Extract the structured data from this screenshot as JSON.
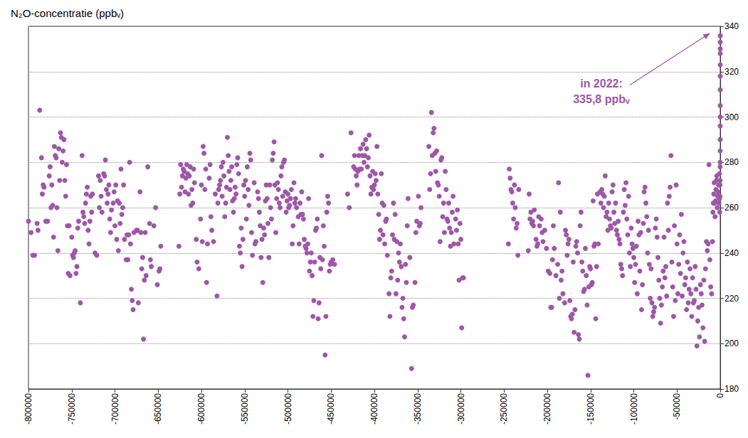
{
  "chart_data": {
    "type": "scatter",
    "title": "N₂O-concentratie (ppbᵥ)",
    "color": "#9e57a8",
    "marker": "circle",
    "grid": true,
    "xlim": [
      -800000,
      0
    ],
    "xticks": [
      -800000,
      -750000,
      -700000,
      -650000,
      -600000,
      -550000,
      -500000,
      -450000,
      -400000,
      -350000,
      -300000,
      -250000,
      -200000,
      -150000,
      -100000,
      -50000,
      0
    ],
    "ylim": [
      180,
      340
    ],
    "yticks": [
      180,
      200,
      220,
      240,
      260,
      280,
      300,
      320,
      340
    ],
    "annotations": [
      {
        "text": "in 2022:\n335,8 ppbᵥ",
        "x": 0,
        "y": 335.8
      }
    ],
    "x": [
      -800000,
      -797000,
      -795000,
      -793000,
      -790000,
      -789000,
      -787000,
      -785000,
      -784000,
      -783000,
      -782000,
      -780000,
      -778000,
      -776000,
      -775000,
      -774000,
      -773000,
      -772000,
      -771000,
      -770000,
      -769000,
      -768000,
      -767000,
      -766000,
      -765000,
      -764000,
      -763000,
      -762000,
      -761000,
      -760000,
      -759000,
      -758000,
      -757000,
      -756000,
      -755000,
      -754000,
      -753000,
      -752000,
      -750000,
      -749000,
      -748000,
      -747000,
      -746000,
      -745000,
      -744000,
      -743000,
      -742000,
      -740000,
      -738000,
      -737000,
      -736000,
      -735000,
      -734000,
      -733000,
      -732000,
      -731000,
      -730000,
      -729000,
      -728000,
      -727000,
      -726000,
      -723000,
      -721000,
      -719000,
      -718000,
      -717000,
      -716000,
      -715000,
      -713000,
      -712000,
      -711000,
      -710000,
      -709000,
      -708000,
      -707000,
      -706000,
      -705000,
      -704000,
      -702000,
      -701000,
      -700000,
      -699000,
      -698000,
      -697000,
      -696000,
      -695000,
      -694000,
      -693000,
      -692000,
      -691000,
      -690000,
      -689000,
      -687000,
      -686000,
      -685000,
      -684000,
      -683000,
      -682000,
      -681000,
      -680000,
      -679000,
      -678000,
      -675000,
      -674000,
      -673000,
      -671000,
      -670000,
      -669000,
      -668000,
      -667000,
      -666000,
      -665000,
      -664000,
      -662000,
      -660000,
      -659000,
      -658000,
      -655000,
      -653000,
      -651000,
      -649000,
      -648000,
      -647000,
      -626000,
      -625000,
      -624000,
      -623000,
      -622000,
      -621000,
      -620000,
      -619000,
      -618000,
      -617000,
      -616000,
      -615000,
      -614000,
      -613000,
      -612000,
      -611000,
      -610000,
      -609000,
      -608000,
      -606000,
      -605000,
      -603000,
      -601000,
      -600000,
      -599000,
      -598000,
      -597000,
      -596000,
      -595000,
      -594000,
      -593000,
      -591000,
      -590000,
      -589000,
      -588000,
      -586000,
      -584000,
      -582000,
      -581000,
      -580000,
      -579000,
      -578000,
      -577000,
      -576000,
      -575000,
      -574000,
      -573000,
      -572000,
      -571000,
      -570000,
      -569000,
      -568000,
      -567000,
      -566000,
      -565000,
      -564000,
      -563000,
      -562000,
      -561000,
      -560000,
      -559000,
      -558000,
      -557000,
      -556000,
      -555000,
      -554000,
      -553000,
      -552000,
      -551000,
      -550000,
      -549000,
      -548000,
      -547000,
      -546000,
      -545000,
      -544000,
      -543000,
      -542000,
      -541000,
      -539000,
      -538000,
      -537000,
      -535000,
      -534000,
      -533000,
      -532000,
      -531000,
      -530000,
      -529000,
      -528000,
      -527000,
      -526000,
      -525000,
      -524000,
      -523000,
      -522000,
      -521000,
      -520000,
      -519000,
      -518000,
      -517000,
      -516000,
      -515000,
      -514000,
      -513000,
      -512000,
      -511000,
      -510000,
      -509000,
      -508000,
      -507000,
      -506000,
      -505000,
      -504000,
      -503000,
      -502000,
      -501000,
      -500000,
      -499000,
      -498000,
      -497000,
      -496000,
      -495000,
      -494000,
      -493000,
      -492000,
      -491000,
      -490000,
      -488000,
      -487000,
      -486000,
      -485000,
      -484000,
      -483000,
      -482000,
      -481000,
      -480000,
      -479000,
      -478000,
      -477000,
      -476000,
      -475000,
      -474000,
      -473000,
      -472000,
      -471000,
      -470000,
      -469000,
      -468000,
      -467000,
      -466000,
      -465000,
      -464000,
      -463000,
      -462000,
      -461000,
      -460000,
      -459000,
      -458000,
      -457000,
      -456000,
      -455000,
      -454000,
      -453000,
      -452000,
      -451000,
      -450000,
      -448000,
      -446000,
      -431000,
      -429000,
      -427000,
      -424000,
      -423000,
      -422000,
      -421000,
      -420000,
      -419000,
      -418000,
      -417000,
      -416000,
      -415000,
      -414000,
      -413000,
      -412000,
      -411000,
      -410000,
      -409000,
      -408000,
      -407000,
      -406000,
      -405000,
      -404000,
      -403000,
      -402000,
      -401000,
      -400000,
      -399000,
      -398000,
      -397000,
      -396000,
      -395000,
      -394000,
      -393000,
      -392000,
      -391000,
      -390000,
      -389000,
      -388000,
      -387000,
      -386000,
      -385000,
      -383000,
      -382000,
      -381000,
      -380000,
      -379000,
      -378000,
      -377000,
      -376000,
      -375000,
      -374000,
      -373000,
      -372000,
      -371000,
      -370000,
      -369000,
      -368000,
      -367000,
      -366000,
      -365000,
      -364000,
      -363000,
      -362000,
      -361000,
      -359000,
      -357000,
      -356000,
      -355000,
      -353000,
      -352000,
      -351000,
      -349000,
      -348000,
      -347000,
      -346000,
      -337000,
      -336000,
      -335000,
      -334000,
      -333000,
      -332000,
      -331000,
      -330000,
      -329000,
      -328000,
      -327000,
      -326000,
      -325000,
      -324000,
      -323000,
      -322000,
      -321000,
      -320000,
      -319000,
      -318000,
      -317000,
      -316000,
      -315000,
      -314000,
      -313000,
      -312000,
      -311000,
      -310000,
      -309000,
      -308000,
      -306000,
      -305000,
      -304000,
      -303000,
      -302000,
      -301000,
      -300000,
      -299000,
      -298000,
      -297000,
      -245000,
      -244000,
      -243000,
      -242000,
      -241000,
      -240000,
      -239000,
      -238000,
      -237000,
      -236000,
      -235000,
      -234000,
      -233000,
      -222000,
      -221000,
      -220000,
      -219000,
      -218000,
      -217000,
      -216000,
      -215000,
      -213000,
      -212000,
      -211000,
      -210000,
      -209000,
      -207000,
      -206000,
      -205000,
      -203000,
      -201000,
      -199000,
      -197000,
      -196000,
      -195000,
      -194000,
      -193000,
      -192000,
      -190000,
      -188000,
      -187000,
      -186000,
      -185000,
      -184000,
      -183000,
      -182000,
      -180000,
      -179000,
      -178000,
      -177000,
      -176000,
      -175000,
      -174000,
      -173000,
      -172000,
      -171000,
      -170000,
      -169000,
      -168000,
      -167000,
      -166000,
      -165000,
      -164000,
      -163000,
      -162000,
      -161000,
      -160000,
      -159000,
      -158000,
      -157000,
      -156000,
      -155000,
      -154000,
      -153000,
      -152000,
      -151000,
      -150000,
      -149000,
      -148000,
      -147000,
      -146000,
      -145000,
      -144000,
      -143000,
      -142000,
      -141000,
      -139000,
      -138000,
      -137000,
      -136000,
      -135000,
      -134000,
      -133000,
      -132000,
      -131000,
      -130000,
      -129000,
      -128000,
      -127000,
      -126000,
      -125000,
      -124000,
      -123000,
      -122000,
      -121000,
      -120000,
      -119000,
      -118000,
      -117000,
      -116000,
      -115000,
      -114000,
      -113000,
      -112000,
      -111000,
      -110000,
      -109000,
      -108000,
      -107000,
      -106000,
      -105000,
      -104000,
      -103000,
      -102000,
      -101000,
      -100000,
      -99000,
      -98000,
      -97000,
      -96000,
      -95000,
      -94000,
      -93000,
      -92000,
      -91000,
      -90000,
      -89000,
      -88000,
      -87000,
      -86000,
      -85000,
      -84000,
      -83000,
      -82000,
      -81000,
      -80000,
      -79000,
      -78000,
      -77000,
      -76000,
      -75000,
      -74000,
      -73000,
      -72000,
      -71000,
      -70000,
      -69000,
      -68000,
      -67000,
      -66000,
      -65000,
      -64000,
      -63000,
      -62000,
      -61000,
      -60000,
      -59000,
      -58000,
      -57000,
      -56000,
      -55000,
      -54000,
      -53000,
      -52000,
      -51000,
      -50000,
      -49000,
      -48000,
      -47000,
      -46000,
      -45000,
      -44000,
      -43000,
      -42000,
      -41000,
      -40000,
      -39000,
      -38000,
      -37000,
      -36000,
      -35000,
      -34000,
      -33000,
      -32000,
      -31000,
      -30000,
      -29000,
      -28000,
      -27000,
      -26000,
      -25000,
      -24000,
      -23000,
      -22000,
      -21000,
      -20000,
      -19000,
      -18000,
      -17000,
      -16000,
      -15000,
      -14000,
      -13000,
      -12000,
      -11000,
      -10000,
      -9000,
      -8500,
      -8000,
      -7500,
      -7000,
      -6500,
      -6000,
      -5500,
      -5000,
      -4500,
      -4000,
      -3500,
      -3000,
      -2500,
      -2000,
      -1500,
      -1000,
      -800,
      -600,
      -400,
      -300,
      -200,
      -150,
      -100,
      -80,
      -60,
      -40,
      -30,
      -20,
      -15,
      -10,
      -5,
      -3,
      -2,
      -1,
      0
    ],
    "values": [
      254,
      249,
      239,
      239,
      253,
      250,
      303,
      282,
      266,
      270,
      269,
      254,
      254,
      274,
      278,
      260,
      270,
      261,
      247,
      287,
      283,
      282,
      260,
      241,
      286,
      272,
      293,
      291,
      280,
      285,
      290,
      272,
      265,
      279,
      252,
      231,
      252,
      230,
      247,
      239,
      238,
      240,
      241,
      231,
      234,
      251,
      254,
      218,
      283,
      258,
      256,
      253,
      262,
      266,
      269,
      250,
      244,
      254,
      265,
      258,
      266,
      240,
      239,
      274,
      260,
      272,
      265,
      258,
      275,
      274,
      281,
      268,
      262,
      266,
      270,
      255,
      249,
      259,
      262,
      267,
      252,
      270,
      246,
      263,
      241,
      262,
      253,
      277,
      257,
      260,
      270,
      246,
      237,
      248,
      237,
      248,
      280,
      244,
      224,
      219,
      215,
      249,
      250,
      250,
      218,
      267,
      249,
      233,
      238,
      202,
      228,
      249,
      230,
      278,
      253,
      237,
      234,
      252,
      260,
      226,
      232,
      233,
      243,
      243,
      266,
      279,
      269,
      274,
      277,
      276,
      267,
      273,
      279,
      275,
      266,
      274,
      278,
      261,
      268,
      262,
      277,
      271,
      246,
      236,
      233,
      255,
      270,
      245,
      287,
      284,
      268,
      277,
      227,
      244,
      273,
      279,
      256,
      250,
      245,
      266,
      221,
      262,
      268,
      270,
      272,
      278,
      265,
      280,
      274,
      256,
      262,
      269,
      291,
      283,
      276,
      268,
      272,
      278,
      263,
      258,
      264,
      269,
      266,
      279,
      282,
      275,
      243,
      240,
      251,
      234,
      246,
      270,
      265,
      272,
      255,
      278,
      268,
      261,
      284,
      281,
      249,
      239,
      271,
      244,
      245,
      267,
      264,
      258,
      252,
      238,
      246,
      227,
      251,
      248,
      263,
      270,
      264,
      253,
      238,
      270,
      260,
      255,
      281,
      284,
      289,
      270,
      249,
      264,
      271,
      268,
      262,
      260,
      274,
      278,
      265,
      280,
      281,
      267,
      258,
      263,
      266,
      260,
      261,
      264,
      268,
      244,
      252,
      271,
      262,
      264,
      260,
      256,
      244,
      262,
      257,
      267,
      257,
      255,
      246,
      243,
      242,
      240,
      244,
      264,
      232,
      236,
      240,
      230,
      212,
      219,
      236,
      250,
      251,
      255,
      211,
      218,
      238,
      233,
      283,
      237,
      252,
      243,
      195,
      212,
      258,
      265,
      262,
      232,
      235,
      236,
      237,
      235,
      266,
      260,
      293,
      278,
      283,
      277,
      274,
      270,
      276,
      283,
      277,
      286,
      277,
      283,
      288,
      280,
      283,
      290,
      286,
      278,
      282,
      292,
      274,
      266,
      269,
      276,
      268,
      270,
      275,
      272,
      287,
      266,
      257,
      246,
      250,
      275,
      262,
      248,
      261,
      244,
      254,
      255,
      239,
      222,
      212,
      229,
      232,
      248,
      262,
      246,
      257,
      222,
      245,
      228,
      240,
      236,
      244,
      234,
      216,
      220,
      211,
      203,
      235,
      227,
      252,
      264,
      238,
      189,
      216,
      217,
      227,
      249,
      254,
      265,
      252,
      253,
      260,
      287,
      268,
      275,
      302,
      283,
      293,
      295,
      284,
      276,
      285,
      271,
      270,
      265,
      245,
      281,
      282,
      256,
      262,
      249,
      276,
      268,
      255,
      254,
      262,
      251,
      243,
      249,
      258,
      265,
      244,
      255,
      250,
      259,
      244,
      228,
      253,
      246,
      207,
      229,
      229,
      244,
      277,
      273,
      268,
      267,
      262,
      255,
      270,
      260,
      251,
      253,
      239,
      268,
      241,
      266,
      255,
      258,
      253,
      254,
      252,
      259,
      246,
      243,
      244,
      256,
      252,
      255,
      249,
      245,
      250,
      242,
      232,
      231,
      216,
      216,
      237,
      252,
      242,
      230,
      235,
      271,
      220,
      258,
      228,
      232,
      222,
      218,
      250,
      248,
      239,
      244,
      246,
      219,
      212,
      211,
      213,
      236,
      205,
      215,
      243,
      245,
      240,
      204,
      202,
      252,
      258,
      236,
      232,
      223,
      224,
      242,
      230,
      217,
      186,
      225,
      234,
      233,
      226,
      227,
      263,
      243,
      244,
      211,
      234,
      266,
      244,
      267,
      262,
      268,
      266,
      260,
      265,
      274,
      256,
      258,
      250,
      262,
      255,
      252,
      251,
      267,
      270,
      258,
      253,
      262,
      250,
      248,
      254,
      246,
      244,
      235,
      233,
      230,
      258,
      268,
      261,
      271,
      255,
      248,
      265,
      240,
      234,
      251,
      244,
      242,
      238,
      227,
      235,
      243,
      222,
      254,
      248,
      232,
      249,
      215,
      226,
      253,
      267,
      269,
      262,
      256,
      240,
      250,
      235,
      220,
      233,
      218,
      212,
      214,
      216,
      251,
      255,
      247,
      238,
      228,
      220,
      209,
      217,
      225,
      232,
      247,
      229,
      234,
      221,
      262,
      250,
      265,
      269,
      283,
      236,
      225,
      212,
      252,
      219,
      270,
      244,
      222,
      235,
      248,
      231,
      257,
      221,
      240,
      245,
      226,
      229,
      215,
      236,
      218,
      224,
      233,
      222,
      212,
      229,
      218,
      219,
      234,
      224,
      199,
      210,
      216,
      203,
      226,
      222,
      217,
      207,
      228,
      201,
      233,
      245,
      241,
      244,
      279,
      237,
      225,
      222,
      245,
      258,
      262,
      266,
      271,
      262,
      256,
      263,
      268,
      272,
      274,
      260,
      265,
      267,
      270,
      262,
      275,
      264,
      258,
      265,
      270,
      278,
      272,
      280,
      285,
      290,
      296,
      300,
      305,
      312,
      318,
      323,
      328,
      330,
      333,
      335.8
    ]
  }
}
